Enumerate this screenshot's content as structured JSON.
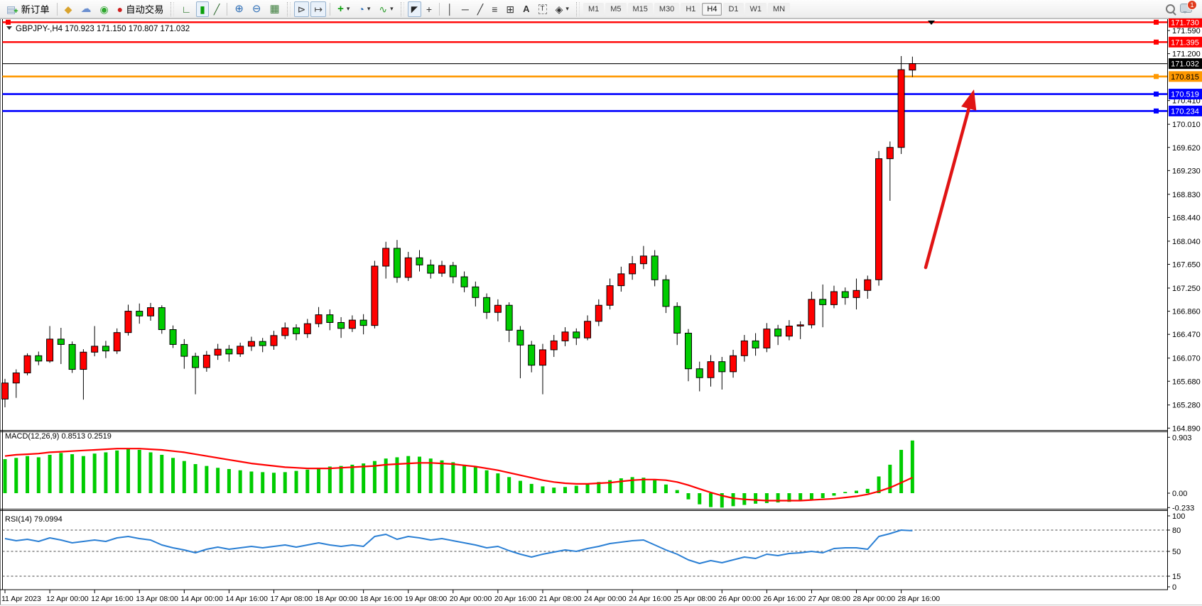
{
  "toolbar": {
    "new_order_label": "新订单",
    "autotrade_label": "自动交易",
    "timeframes": [
      "M1",
      "M5",
      "M15",
      "M30",
      "H1",
      "H4",
      "D1",
      "W1",
      "MN"
    ],
    "active_timeframe": "H4",
    "notification_count": "1"
  },
  "icons": {
    "doc": "▤",
    "plus": "+",
    "coin": "◆",
    "cloud": "☁",
    "signal": "◉",
    "robot": "●",
    "bar_chart": "∟",
    "candles": "▮",
    "line_chart": "╱",
    "zoom_in": "⊕",
    "zoom_out": "⊖",
    "tile": "▦",
    "shift": "⊳",
    "autoscroll": "↦",
    "indicators": "+",
    "clock": "◔",
    "template": "∿",
    "caret": "▾",
    "cursor": "◤",
    "crosshair": "+",
    "vline": "│",
    "hline": "─",
    "trendline": "╱",
    "fibo": "≡",
    "grid": "⊞",
    "text": "A",
    "label": "T",
    "shapes": "◈"
  },
  "chart_data": {
    "type": "candlestick",
    "symbol": "GBPJPY-",
    "period": "H4",
    "current_ohlc": {
      "open": "170.923",
      "high": "171.150",
      "low": "170.807",
      "close": "171.032"
    },
    "price_ticks": [
      "171.590",
      "171.200",
      "170.410",
      "170.010",
      "169.620",
      "169.230",
      "168.830",
      "168.440",
      "168.040",
      "167.650",
      "167.250",
      "166.860",
      "166.470",
      "166.070",
      "165.680",
      "165.280",
      "164.890"
    ],
    "hlines": [
      {
        "price": 171.73,
        "color": "#ff0000",
        "width": 2.4,
        "badge": "171.730",
        "badge_bg": "#ff0000",
        "badge_fg": "#ffffff",
        "handle": true,
        "left_handle": true
      },
      {
        "price": 171.395,
        "color": "#ff0000",
        "width": 2.4,
        "badge": "171.395",
        "badge_bg": "#ff0000",
        "badge_fg": "#ffffff",
        "handle": true
      },
      {
        "price": 171.032,
        "color": "#000000",
        "width": 1.2,
        "badge": "171.032",
        "badge_bg": "#000000",
        "badge_fg": "#ffffff",
        "handle": false
      },
      {
        "price": 170.815,
        "color": "#ff9800",
        "width": 2.6,
        "badge": "170.815",
        "badge_bg": "#ff9800",
        "badge_fg": "#000000",
        "handle": true
      },
      {
        "price": 170.519,
        "color": "#0000ff",
        "width": 2.6,
        "badge": "170.519",
        "badge_bg": "#0000ff",
        "badge_fg": "#ffffff",
        "handle": true
      },
      {
        "price": 170.234,
        "color": "#0000ff",
        "width": 2.6,
        "badge": "170.234",
        "badge_bg": "#0000ff",
        "badge_fg": "#ffffff",
        "handle": true
      }
    ],
    "time_labels": [
      "11 Apr 2023",
      "12 Apr 00:00",
      "12 Apr 16:00",
      "13 Apr 08:00",
      "14 Apr 00:00",
      "14 Apr 16:00",
      "17 Apr 08:00",
      "18 Apr 00:00",
      "18 Apr 16:00",
      "19 Apr 08:00",
      "20 Apr 00:00",
      "20 Apr 16:00",
      "21 Apr 08:00",
      "24 Apr 00:00",
      "24 Apr 16:00",
      "25 Apr 08:00",
      "26 Apr 00:00",
      "26 Apr 16:00",
      "27 Apr 08:00",
      "28 Apr 00:00",
      "28 Apr 16:00"
    ],
    "candles": [
      [
        165.38,
        165.72,
        165.24,
        165.65
      ],
      [
        165.65,
        165.88,
        165.4,
        165.82
      ],
      [
        165.82,
        166.15,
        165.78,
        166.11
      ],
      [
        166.11,
        166.18,
        165.95,
        166.02
      ],
      [
        166.02,
        166.61,
        165.99,
        166.39
      ],
      [
        166.39,
        166.58,
        165.97,
        166.3
      ],
      [
        166.3,
        166.35,
        165.82,
        165.88
      ],
      [
        165.88,
        166.22,
        165.37,
        166.17
      ],
      [
        166.17,
        166.61,
        166.1,
        166.27
      ],
      [
        166.27,
        166.36,
        166.07,
        166.19
      ],
      [
        166.19,
        166.57,
        166.14,
        166.5
      ],
      [
        166.5,
        166.97,
        166.45,
        166.86
      ],
      [
        166.86,
        166.99,
        166.65,
        166.78
      ],
      [
        166.78,
        167.0,
        166.7,
        166.92
      ],
      [
        166.92,
        166.96,
        166.48,
        166.55
      ],
      [
        166.55,
        166.62,
        166.24,
        166.3
      ],
      [
        166.3,
        166.39,
        165.89,
        166.1
      ],
      [
        166.1,
        166.16,
        165.46,
        165.91
      ],
      [
        165.91,
        166.19,
        165.84,
        166.12
      ],
      [
        166.12,
        166.31,
        166.04,
        166.22
      ],
      [
        166.22,
        166.29,
        166.01,
        166.14
      ],
      [
        166.14,
        166.33,
        166.09,
        166.27
      ],
      [
        166.27,
        166.43,
        166.19,
        166.35
      ],
      [
        166.35,
        166.41,
        166.17,
        166.28
      ],
      [
        166.28,
        166.53,
        166.21,
        166.45
      ],
      [
        166.45,
        166.67,
        166.39,
        166.58
      ],
      [
        166.58,
        166.64,
        166.37,
        166.48
      ],
      [
        166.48,
        166.73,
        166.41,
        166.65
      ],
      [
        166.65,
        166.93,
        166.59,
        166.8
      ],
      [
        166.8,
        166.89,
        166.54,
        166.67
      ],
      [
        166.67,
        166.76,
        166.41,
        166.57
      ],
      [
        166.57,
        166.79,
        166.51,
        166.71
      ],
      [
        166.71,
        166.81,
        166.47,
        166.62
      ],
      [
        166.62,
        167.71,
        166.57,
        167.62
      ],
      [
        167.62,
        168.03,
        167.41,
        167.92
      ],
      [
        167.92,
        168.06,
        167.34,
        167.43
      ],
      [
        167.43,
        167.86,
        167.37,
        167.76
      ],
      [
        167.76,
        167.89,
        167.53,
        167.64
      ],
      [
        167.64,
        167.73,
        167.41,
        167.5
      ],
      [
        167.5,
        167.71,
        167.44,
        167.63
      ],
      [
        167.63,
        167.69,
        167.33,
        167.44
      ],
      [
        167.44,
        167.53,
        167.18,
        167.27
      ],
      [
        167.27,
        167.36,
        166.94,
        167.09
      ],
      [
        167.09,
        167.16,
        166.73,
        166.84
      ],
      [
        166.84,
        167.06,
        166.69,
        166.96
      ],
      [
        166.96,
        167.01,
        166.34,
        166.54
      ],
      [
        166.54,
        166.61,
        165.73,
        166.29
      ],
      [
        166.29,
        166.36,
        165.83,
        165.95
      ],
      [
        165.95,
        166.31,
        165.46,
        166.21
      ],
      [
        166.21,
        166.46,
        166.09,
        166.36
      ],
      [
        166.36,
        166.59,
        166.27,
        166.51
      ],
      [
        166.51,
        166.57,
        166.29,
        166.41
      ],
      [
        166.41,
        166.79,
        166.37,
        166.69
      ],
      [
        166.69,
        167.06,
        166.61,
        166.96
      ],
      [
        166.96,
        167.41,
        166.89,
        167.29
      ],
      [
        167.29,
        167.61,
        167.19,
        167.49
      ],
      [
        167.49,
        167.79,
        167.39,
        167.66
      ],
      [
        167.66,
        167.96,
        167.57,
        167.79
      ],
      [
        167.79,
        167.89,
        167.28,
        167.39
      ],
      [
        167.39,
        167.47,
        166.83,
        166.94
      ],
      [
        166.94,
        167.01,
        166.29,
        166.49
      ],
      [
        166.49,
        166.56,
        165.68,
        165.89
      ],
      [
        165.89,
        166.01,
        165.51,
        165.74
      ],
      [
        165.74,
        166.12,
        165.59,
        166.01
      ],
      [
        166.01,
        166.09,
        165.54,
        165.84
      ],
      [
        165.84,
        166.21,
        165.74,
        166.11
      ],
      [
        166.11,
        166.46,
        166.01,
        166.36
      ],
      [
        166.36,
        166.49,
        166.11,
        166.24
      ],
      [
        166.24,
        166.66,
        166.17,
        166.56
      ],
      [
        166.56,
        166.63,
        166.29,
        166.44
      ],
      [
        166.44,
        166.71,
        166.37,
        166.61
      ],
      [
        166.61,
        166.69,
        166.39,
        166.63
      ],
      [
        166.63,
        167.19,
        166.57,
        167.06
      ],
      [
        167.06,
        167.31,
        166.59,
        166.97
      ],
      [
        166.97,
        167.29,
        166.91,
        167.19
      ],
      [
        167.19,
        167.26,
        166.97,
        167.09
      ],
      [
        167.09,
        167.41,
        166.89,
        167.21
      ],
      [
        167.21,
        167.46,
        167.07,
        167.39
      ],
      [
        167.39,
        169.56,
        167.29,
        169.43
      ],
      [
        169.43,
        169.72,
        168.72,
        169.62
      ],
      [
        169.62,
        171.16,
        169.51,
        170.93
      ],
      [
        170.923,
        171.15,
        170.807,
        171.032
      ]
    ],
    "macd": {
      "label": "MACD(12,26,9)",
      "main_value": "0.8513",
      "signal_value": "0.2519",
      "axis_labels": [
        "0.903",
        "0.00",
        "-0.233"
      ],
      "axis_values": [
        0.903,
        0,
        -0.233
      ],
      "histogram": [
        0.55,
        0.57,
        0.6,
        0.58,
        0.62,
        0.65,
        0.63,
        0.6,
        0.64,
        0.66,
        0.69,
        0.72,
        0.7,
        0.66,
        0.62,
        0.57,
        0.52,
        0.47,
        0.44,
        0.41,
        0.39,
        0.37,
        0.35,
        0.34,
        0.33,
        0.34,
        0.36,
        0.38,
        0.41,
        0.43,
        0.44,
        0.46,
        0.48,
        0.52,
        0.56,
        0.58,
        0.6,
        0.59,
        0.56,
        0.53,
        0.5,
        0.46,
        0.42,
        0.37,
        0.32,
        0.26,
        0.2,
        0.15,
        0.11,
        0.09,
        0.1,
        0.12,
        0.15,
        0.18,
        0.21,
        0.24,
        0.26,
        0.25,
        0.21,
        0.14,
        0.05,
        -0.1,
        -0.18,
        -0.225,
        -0.233,
        -0.21,
        -0.19,
        -0.17,
        -0.16,
        -0.15,
        -0.14,
        -0.13,
        -0.11,
        -0.08,
        -0.04,
        0.02,
        0.04,
        0.07,
        0.27,
        0.46,
        0.7,
        0.8513
      ],
      "signal": [
        0.6,
        0.62,
        0.63,
        0.64,
        0.66,
        0.67,
        0.68,
        0.69,
        0.7,
        0.71,
        0.72,
        0.72,
        0.72,
        0.71,
        0.7,
        0.68,
        0.66,
        0.63,
        0.6,
        0.57,
        0.54,
        0.51,
        0.48,
        0.46,
        0.44,
        0.42,
        0.41,
        0.4,
        0.4,
        0.4,
        0.41,
        0.42,
        0.43,
        0.44,
        0.46,
        0.47,
        0.48,
        0.49,
        0.49,
        0.48,
        0.47,
        0.45,
        0.43,
        0.4,
        0.37,
        0.33,
        0.29,
        0.25,
        0.21,
        0.18,
        0.16,
        0.15,
        0.15,
        0.16,
        0.17,
        0.19,
        0.21,
        0.22,
        0.22,
        0.21,
        0.18,
        0.13,
        0.07,
        0.01,
        -0.04,
        -0.08,
        -0.1,
        -0.11,
        -0.12,
        -0.12,
        -0.12,
        -0.12,
        -0.11,
        -0.1,
        -0.09,
        -0.07,
        -0.05,
        -0.02,
        0.03,
        0.09,
        0.17,
        0.2519
      ]
    },
    "rsi": {
      "label": "RSI(14)",
      "value": "79.0994",
      "axis_labels": [
        "100",
        "80",
        "50",
        "15",
        "0"
      ],
      "axis_values": [
        100,
        80,
        50,
        15,
        0
      ],
      "levels": [
        80,
        50,
        15
      ],
      "line": [
        68,
        65,
        67,
        64,
        69,
        66,
        62,
        64,
        66,
        64,
        69,
        71,
        68,
        66,
        59,
        55,
        52,
        48,
        53,
        56,
        53,
        55,
        57,
        55,
        57,
        59,
        56,
        59,
        62,
        59,
        57,
        59,
        57,
        71,
        74,
        67,
        71,
        69,
        66,
        68,
        65,
        62,
        59,
        55,
        57,
        51,
        46,
        42,
        46,
        49,
        52,
        50,
        54,
        57,
        61,
        63,
        65,
        66,
        59,
        52,
        46,
        38,
        33,
        37,
        34,
        38,
        42,
        40,
        46,
        44,
        47,
        48,
        50,
        48,
        54,
        55,
        55,
        53,
        71,
        75,
        80,
        79.1
      ]
    },
    "arrow": {
      "from": [
        1303,
        377
      ],
      "to": [
        1371,
        126
      ],
      "color": "#e01414"
    },
    "colors": {
      "up": "#ff0000",
      "down": "#00cc00",
      "wick": "#000000",
      "macd_hist": "#00cc00",
      "macd_signal": "#ff0000",
      "rsi_line": "#2a7fd4",
      "axis_text": "#000000",
      "border": "#000000"
    }
  }
}
